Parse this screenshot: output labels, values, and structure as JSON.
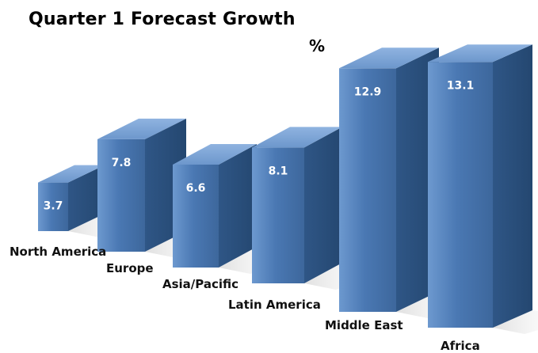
{
  "chart_data": {
    "type": "bar",
    "title": "Quarter 1 Forecast Growth",
    "unit": "%",
    "categories": [
      "North America",
      "Europe",
      "Asia/Pacific",
      "Latin America",
      "Middle East",
      "Africa"
    ],
    "values": [
      3.7,
      7.8,
      6.6,
      8.1,
      12.9,
      13.1
    ],
    "value_labels": [
      "3.7",
      "7.8",
      "6.6",
      "8.1",
      "12.9",
      "13.1"
    ],
    "style": "3d",
    "bar_color": "#4a78b3",
    "ylim": [
      0,
      13.5
    ],
    "grid": false
  }
}
